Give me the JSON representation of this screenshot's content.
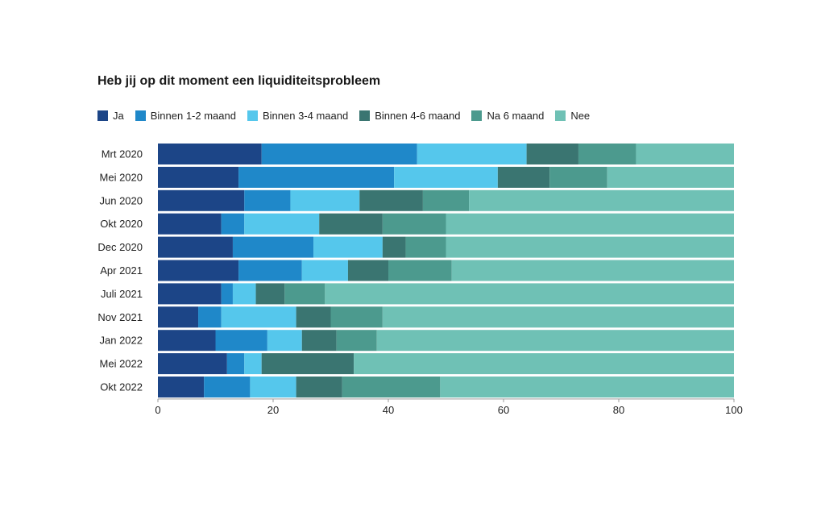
{
  "chart_data": {
    "type": "bar",
    "orientation": "horizontal",
    "stacked": true,
    "title": "Heb jij op dit moment een liquiditeitsprobleem",
    "xlabel": "",
    "ylabel": "",
    "xlim": [
      0,
      100
    ],
    "xticks": [
      0,
      20,
      40,
      60,
      80,
      100
    ],
    "grid": false,
    "legend_position": "top-left",
    "categories": [
      "Mrt 2020",
      "Mei 2020",
      "Jun 2020",
      "Okt 2020",
      "Dec 2020",
      "Apr 2021",
      "Juli 2021",
      "Nov 2021",
      "Jan 2022",
      "Mei 2022",
      "Okt 2022"
    ],
    "series": [
      {
        "name": "Ja",
        "color": "#1c4587",
        "values": [
          18,
          14,
          15,
          11,
          13,
          14,
          11,
          7,
          10,
          12,
          8
        ]
      },
      {
        "name": "Binnen 1-2 maand",
        "color": "#1f88c9",
        "values": [
          27,
          27,
          8,
          4,
          14,
          11,
          2,
          4,
          9,
          3,
          8
        ]
      },
      {
        "name": "Binnen 3-4 maand",
        "color": "#55c7ec",
        "values": [
          19,
          18,
          12,
          13,
          12,
          8,
          4,
          13,
          6,
          3,
          8
        ]
      },
      {
        "name": "Binnen 4-6 maand",
        "color": "#3a7571",
        "values": [
          9,
          9,
          11,
          11,
          4,
          7,
          5,
          6,
          6,
          16,
          8
        ]
      },
      {
        "name": "Na 6 maand",
        "color": "#4c9a8e",
        "values": [
          10,
          10,
          8,
          11,
          7,
          11,
          7,
          9,
          7,
          0,
          17
        ]
      },
      {
        "name": "Nee",
        "color": "#6fc1b5",
        "values": [
          17,
          22,
          46,
          50,
          50,
          49,
          71,
          61,
          62,
          66,
          51
        ]
      }
    ]
  }
}
